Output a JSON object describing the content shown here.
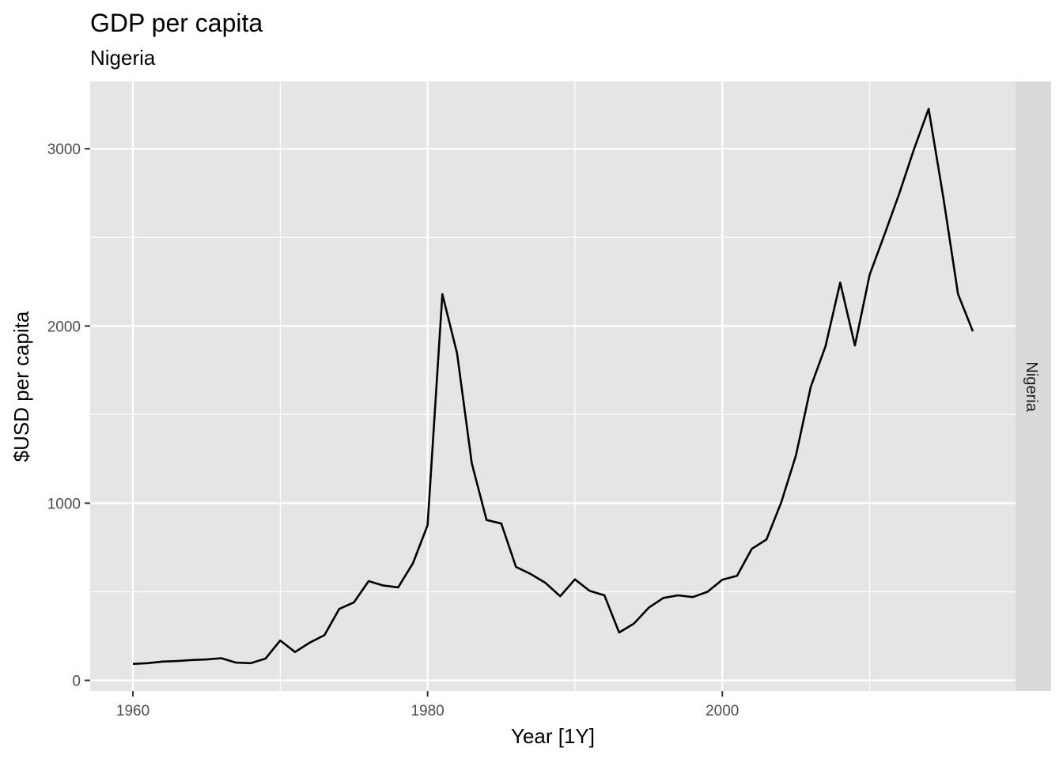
{
  "chart_data": {
    "type": "line",
    "title": "GDP per capita",
    "subtitle": "Nigeria",
    "xlabel": "Year [1Y]",
    "ylabel": "$USD per capita",
    "facet_label": "Nigeria",
    "xlim": [
      1957.1,
      2019.9
    ],
    "ylim": [
      -60,
      3380
    ],
    "x_ticks": [
      1960,
      1980,
      2000
    ],
    "x_minor": [
      1970,
      1990,
      2010
    ],
    "y_ticks": [
      0,
      1000,
      2000,
      3000
    ],
    "y_minor": [
      500,
      1500,
      2500
    ],
    "grid": true,
    "legend": "none",
    "colors": {
      "panel": "#e5e5e5",
      "grid": "#ffffff",
      "line": "#000000",
      "strip": "#d9d9d9"
    },
    "series": [
      {
        "x": [
          1960,
          1961,
          1962,
          1963,
          1964,
          1965,
          1966,
          1967,
          1968,
          1969,
          1970,
          1971,
          1972,
          1973,
          1974,
          1975,
          1976,
          1977,
          1978,
          1979,
          1980,
          1981,
          1982,
          1983,
          1984,
          1985,
          1986,
          1987,
          1988,
          1989,
          1990,
          1991,
          1992,
          1993,
          1994,
          1995,
          1996,
          1997,
          1998,
          1999,
          2000,
          2001,
          2002,
          2003,
          2004,
          2005,
          2006,
          2007,
          2008,
          2009,
          2010,
          2011,
          2012,
          2013,
          2014,
          2015,
          2016,
          2017
        ],
        "y": [
          93,
          97,
          106,
          109,
          115,
          118,
          125,
          100,
          97,
          123,
          225,
          160,
          213,
          255,
          403,
          440,
          560,
          535,
          525,
          660,
          875,
          2180,
          1845,
          1225,
          905,
          885,
          640,
          600,
          550,
          475,
          570,
          505,
          480,
          270,
          320,
          410,
          465,
          480,
          470,
          500,
          568,
          590,
          742,
          795,
          1005,
          1270,
          1655,
          1885,
          2245,
          1890,
          2290,
          2515,
          2745,
          2995,
          3225,
          2725,
          2180,
          1970
        ]
      }
    ]
  }
}
